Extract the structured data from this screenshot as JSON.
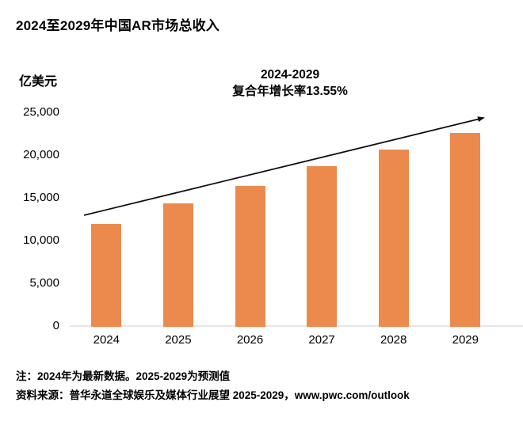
{
  "page": {
    "title": "2024至2029年中国AR市场总收入"
  },
  "chart": {
    "unit_label": "亿美元",
    "annotation_line1": "2024-2029",
    "annotation_line2": "复合年增长率13.55%"
  },
  "chart_data": {
    "type": "bar",
    "title": "2024至2029年中国AR市场总收入",
    "categories": [
      "2024",
      "2025",
      "2026",
      "2027",
      "2028",
      "2029"
    ],
    "values": [
      11950,
      14300,
      16400,
      18650,
      20650,
      22550
    ],
    "xlabel": "",
    "ylabel": "亿美元",
    "ylim": [
      0,
      25000
    ],
    "yticks": [
      0,
      5000,
      10000,
      15000,
      20000,
      25000
    ],
    "ytick_labels": [
      "0",
      "5,000",
      "10,000",
      "15,000",
      "20,000",
      "25,000"
    ],
    "bar_color": "#EC8A4E",
    "baseline_color": "#EAE5E3",
    "arrow_color": "#111111",
    "annotation": "2024-2029 复合年增长率13.55%",
    "grid": false,
    "legend": false,
    "trend_arrow": true
  },
  "notes": {
    "line1": "注：2024年为最新数据。2025-2029为预测值",
    "line2": "资料来源：普华永道全球娱乐及媒体行业展望 2025-2029，www.pwc.com/outlook"
  }
}
